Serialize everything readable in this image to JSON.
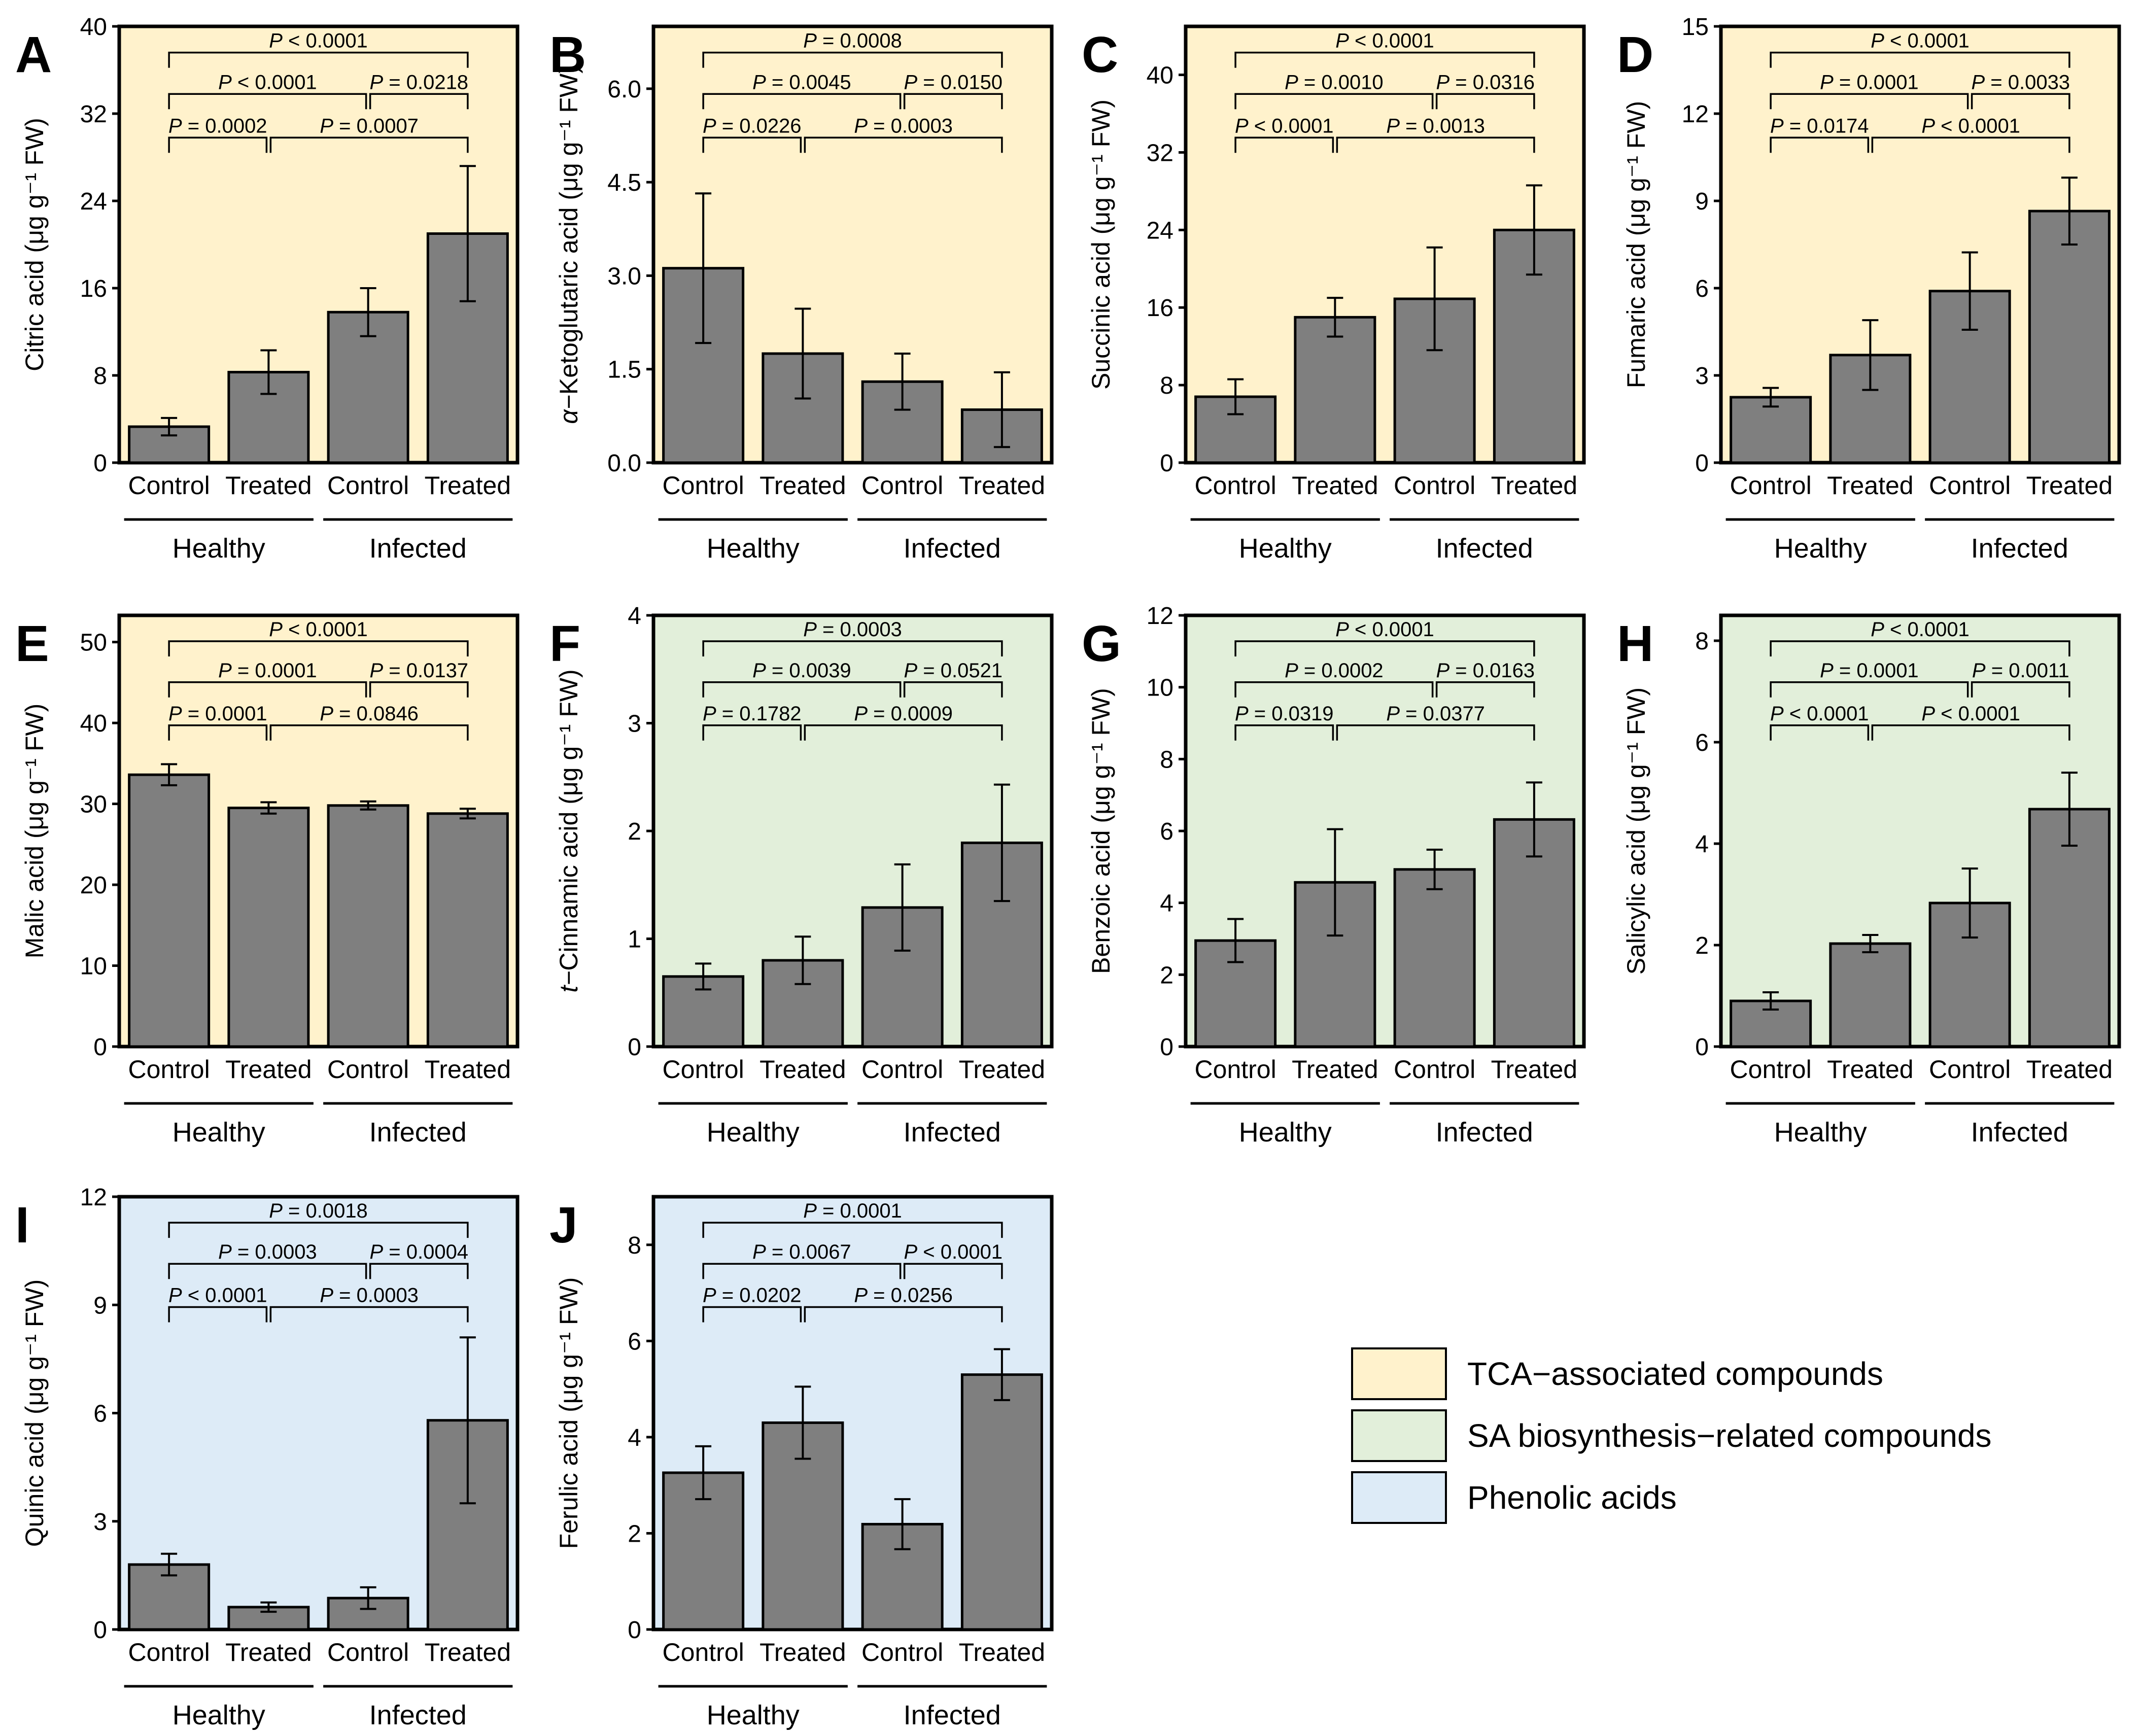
{
  "colors": {
    "TCA": "#fff2cc",
    "SA": "#e2efda",
    "Phenolic": "#ddebf7",
    "bar": "#7f7f7f"
  },
  "categories": [
    "Control",
    "Treated",
    "Control",
    "Treated"
  ],
  "groups": [
    "Healthy",
    "Infected"
  ],
  "unit_text": " (μg g⁻¹ FW)",
  "legend": [
    {
      "label": "TCA−associated compounds",
      "color_key": "TCA"
    },
    {
      "label": "SA biosynthesis−related compounds",
      "color_key": "SA"
    },
    {
      "label": "Phenolic acids",
      "color_key": "Phenolic"
    }
  ],
  "chart_data": [
    {
      "type": "bar",
      "letter": "A",
      "compound": "Citric acid",
      "italic_prefix": "",
      "class": "TCA",
      "ylim": [
        0,
        40
      ],
      "yticks": [
        0,
        8,
        16,
        24,
        32,
        40
      ],
      "tick_decimals": 0,
      "values": [
        3.3,
        8.3,
        13.8,
        21.0
      ],
      "errors": [
        0.8,
        2.0,
        2.2,
        6.2
      ],
      "pvalues": {
        "top": "< 0.0001",
        "mid_left": "< 0.0001",
        "mid_right": "= 0.0218",
        "low_left": "= 0.0002",
        "low_right": "= 0.0007"
      }
    },
    {
      "type": "bar",
      "letter": "B",
      "compound": "Ketoglutaric acid",
      "italic_prefix": "α−",
      "class": "TCA",
      "ylim": [
        0,
        7.0
      ],
      "yticks": [
        0.0,
        1.5,
        3.0,
        4.5,
        6.0
      ],
      "tick_decimals": 1,
      "values": [
        3.12,
        1.75,
        1.3,
        0.85
      ],
      "errors": [
        1.2,
        0.72,
        0.45,
        0.6
      ],
      "pvalues": {
        "top": "= 0.0008",
        "mid_left": "= 0.0045",
        "mid_right": "= 0.0150",
        "low_left": "= 0.0226",
        "low_right": "= 0.0003"
      }
    },
    {
      "type": "bar",
      "letter": "C",
      "compound": "Succinic acid",
      "italic_prefix": "",
      "class": "TCA",
      "ylim": [
        0,
        45
      ],
      "yticks": [
        0,
        8,
        16,
        24,
        32,
        40
      ],
      "tick_decimals": 0,
      "values": [
        6.8,
        15.0,
        16.9,
        24.0
      ],
      "errors": [
        1.8,
        2.0,
        5.3,
        4.6
      ],
      "pvalues": {
        "top": "< 0.0001",
        "mid_left": "= 0.0010",
        "mid_right": "= 0.0316",
        "low_left": "< 0.0001",
        "low_right": "= 0.0013"
      }
    },
    {
      "type": "bar",
      "letter": "D",
      "compound": "Fumaric acid",
      "italic_prefix": "",
      "class": "TCA",
      "ylim": [
        0,
        15
      ],
      "yticks": [
        0,
        3,
        6,
        9,
        12,
        15
      ],
      "tick_decimals": 0,
      "values": [
        2.25,
        3.7,
        5.9,
        8.65
      ],
      "errors": [
        0.32,
        1.2,
        1.33,
        1.15
      ],
      "pvalues": {
        "top": "< 0.0001",
        "mid_left": "= 0.0001",
        "mid_right": "= 0.0033",
        "low_left": "= 0.0174",
        "low_right": "< 0.0001"
      }
    },
    {
      "type": "bar",
      "letter": "E",
      "compound": "Malic acid",
      "italic_prefix": "",
      "class": "TCA",
      "ylim": [
        0,
        53.3
      ],
      "yticks": [
        0,
        10,
        20,
        30,
        40,
        50
      ],
      "tick_decimals": 0,
      "values": [
        33.6,
        29.5,
        29.8,
        28.8
      ],
      "errors": [
        1.3,
        0.7,
        0.5,
        0.6
      ],
      "pvalues": {
        "top": "< 0.0001",
        "mid_left": "= 0.0001",
        "mid_right": "= 0.0137",
        "low_left": "= 0.0001",
        "low_right": "= 0.0846"
      }
    },
    {
      "type": "bar",
      "letter": "F",
      "compound": "Cinnamic acid",
      "italic_prefix": "t−",
      "class": "SA",
      "ylim": [
        0,
        4
      ],
      "yticks": [
        0,
        1,
        2,
        3,
        4
      ],
      "tick_decimals": 0,
      "values": [
        0.65,
        0.8,
        1.29,
        1.89
      ],
      "errors": [
        0.12,
        0.22,
        0.4,
        0.54
      ],
      "pvalues": {
        "top": "= 0.0003",
        "mid_left": "= 0.0039",
        "mid_right": "= 0.0521",
        "low_left": "= 0.1782",
        "low_right": "= 0.0009"
      }
    },
    {
      "type": "bar",
      "letter": "G",
      "compound": "Benzoic acid",
      "italic_prefix": "",
      "class": "SA",
      "ylim": [
        0,
        12
      ],
      "yticks": [
        0,
        2,
        4,
        6,
        8,
        10,
        12
      ],
      "tick_decimals": 0,
      "values": [
        2.95,
        4.57,
        4.93,
        6.32
      ],
      "errors": [
        0.6,
        1.48,
        0.55,
        1.03
      ],
      "pvalues": {
        "top": "< 0.0001",
        "mid_left": "= 0.0002",
        "mid_right": "= 0.0163",
        "low_left": "= 0.0319",
        "low_right": "= 0.0377"
      }
    },
    {
      "type": "bar",
      "letter": "H",
      "compound": "Salicylic acid",
      "italic_prefix": "",
      "class": "SA",
      "ylim": [
        0,
        8.5
      ],
      "yticks": [
        0,
        2,
        4,
        6,
        8
      ],
      "tick_decimals": 0,
      "values": [
        0.9,
        2.03,
        2.83,
        4.68
      ],
      "errors": [
        0.17,
        0.17,
        0.68,
        0.72
      ],
      "pvalues": {
        "top": "< 0.0001",
        "mid_left": "= 0.0001",
        "mid_right": "= 0.0011",
        "low_left": "< 0.0001",
        "low_right": "< 0.0001"
      }
    },
    {
      "type": "bar",
      "letter": "I",
      "compound": "Quinic acid",
      "italic_prefix": "",
      "class": "Phenolic",
      "ylim": [
        0,
        12
      ],
      "yticks": [
        0,
        3,
        6,
        9,
        12
      ],
      "tick_decimals": 0,
      "values": [
        1.8,
        0.62,
        0.87,
        5.8
      ],
      "errors": [
        0.3,
        0.13,
        0.3,
        2.3
      ],
      "pvalues": {
        "top": "= 0.0018",
        "mid_left": "= 0.0003",
        "mid_right": "= 0.0004",
        "low_left": "< 0.0001",
        "low_right": "= 0.0003"
      }
    },
    {
      "type": "bar",
      "letter": "J",
      "compound": "Ferulic acid",
      "italic_prefix": "",
      "class": "Phenolic",
      "ylim": [
        0,
        9
      ],
      "yticks": [
        0,
        2,
        4,
        6,
        8
      ],
      "tick_decimals": 0,
      "values": [
        3.26,
        4.3,
        2.19,
        5.3
      ],
      "errors": [
        0.55,
        0.75,
        0.52,
        0.53
      ],
      "pvalues": {
        "top": "= 0.0001",
        "mid_left": "= 0.0067",
        "mid_right": "< 0.0001",
        "low_left": "= 0.0202",
        "low_right": "= 0.0256"
      }
    }
  ]
}
